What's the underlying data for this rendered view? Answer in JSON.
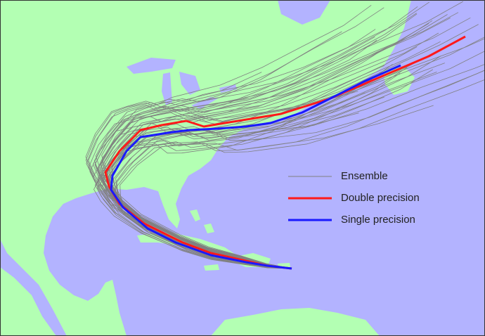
{
  "legend": {
    "items": [
      {
        "name": "Ensemble",
        "color": "#808080"
      },
      {
        "name": "Double precision",
        "color": "#ff1a1a"
      },
      {
        "name": "Single precision",
        "color": "#1a1aff"
      }
    ]
  }
}
